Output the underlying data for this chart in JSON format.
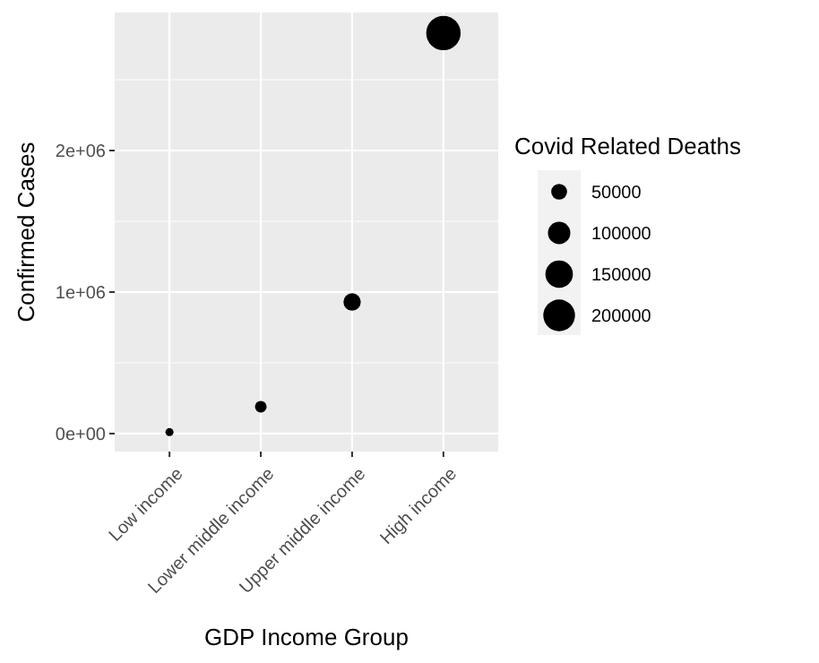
{
  "chart_data": {
    "type": "bubble",
    "xlabel": "GDP Income Group",
    "ylabel": "Confirmed Cases",
    "legend_title": "Covid Related Deaths",
    "categories": [
      "Low income",
      "Lower middle income",
      "Upper middle income",
      "High income"
    ],
    "series": [
      {
        "color": "#000000",
        "values": [
          10000,
          190000,
          930000,
          2830000
        ],
        "sizes": [
          13000,
          27000,
          60000,
          235000
        ]
      }
    ],
    "size_legend": [
      50000,
      100000,
      150000,
      200000
    ],
    "ylim": [
      -127000,
      2975000
    ],
    "yticks": [
      {
        "value": 0,
        "label": "0e+00"
      },
      {
        "value": 1000000,
        "label": "1e+06"
      },
      {
        "value": 2000000,
        "label": "2e+06"
      }
    ],
    "grid": true
  }
}
